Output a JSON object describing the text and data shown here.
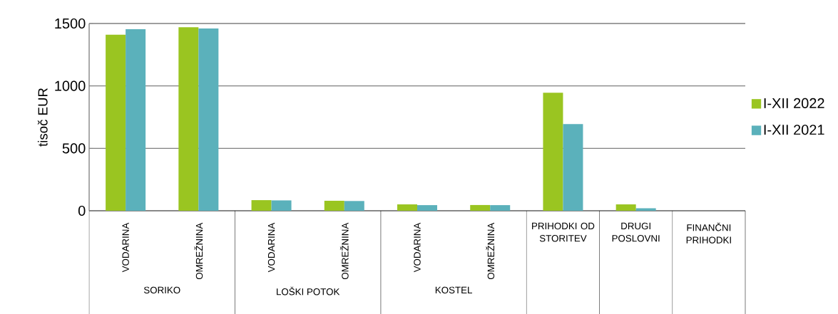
{
  "chart_data": {
    "type": "bar",
    "ylabel": "tisoč EUR",
    "categories": [
      "VODARINA",
      "OMREŽNINA",
      "VODARINA",
      "OMREŽNINA",
      "VODARINA",
      "OMREŽNINA",
      "PRIHODKI OD STORITEV",
      "DRUGI POSLOVNI",
      "FINANČNI PRIHODKI"
    ],
    "annotations": [
      "SORIKO",
      "LOŠKI POTOK",
      "KOSTEL"
    ],
    "series": [
      {
        "name": "I-XII 2022",
        "color": "#9ac521",
        "values": [
          1410,
          1470,
          85,
          80,
          51,
          46,
          945,
          51,
          null
        ]
      },
      {
        "name": "I-XII 2021",
        "color": "#5bb1bb",
        "values": [
          1455,
          1460,
          83,
          78,
          45,
          45,
          695,
          20,
          null
        ]
      }
    ],
    "ylim": [
      0,
      1500
    ],
    "yticks": [
      0,
      500,
      1000,
      1500
    ],
    "grid": "y",
    "legend": "right"
  }
}
